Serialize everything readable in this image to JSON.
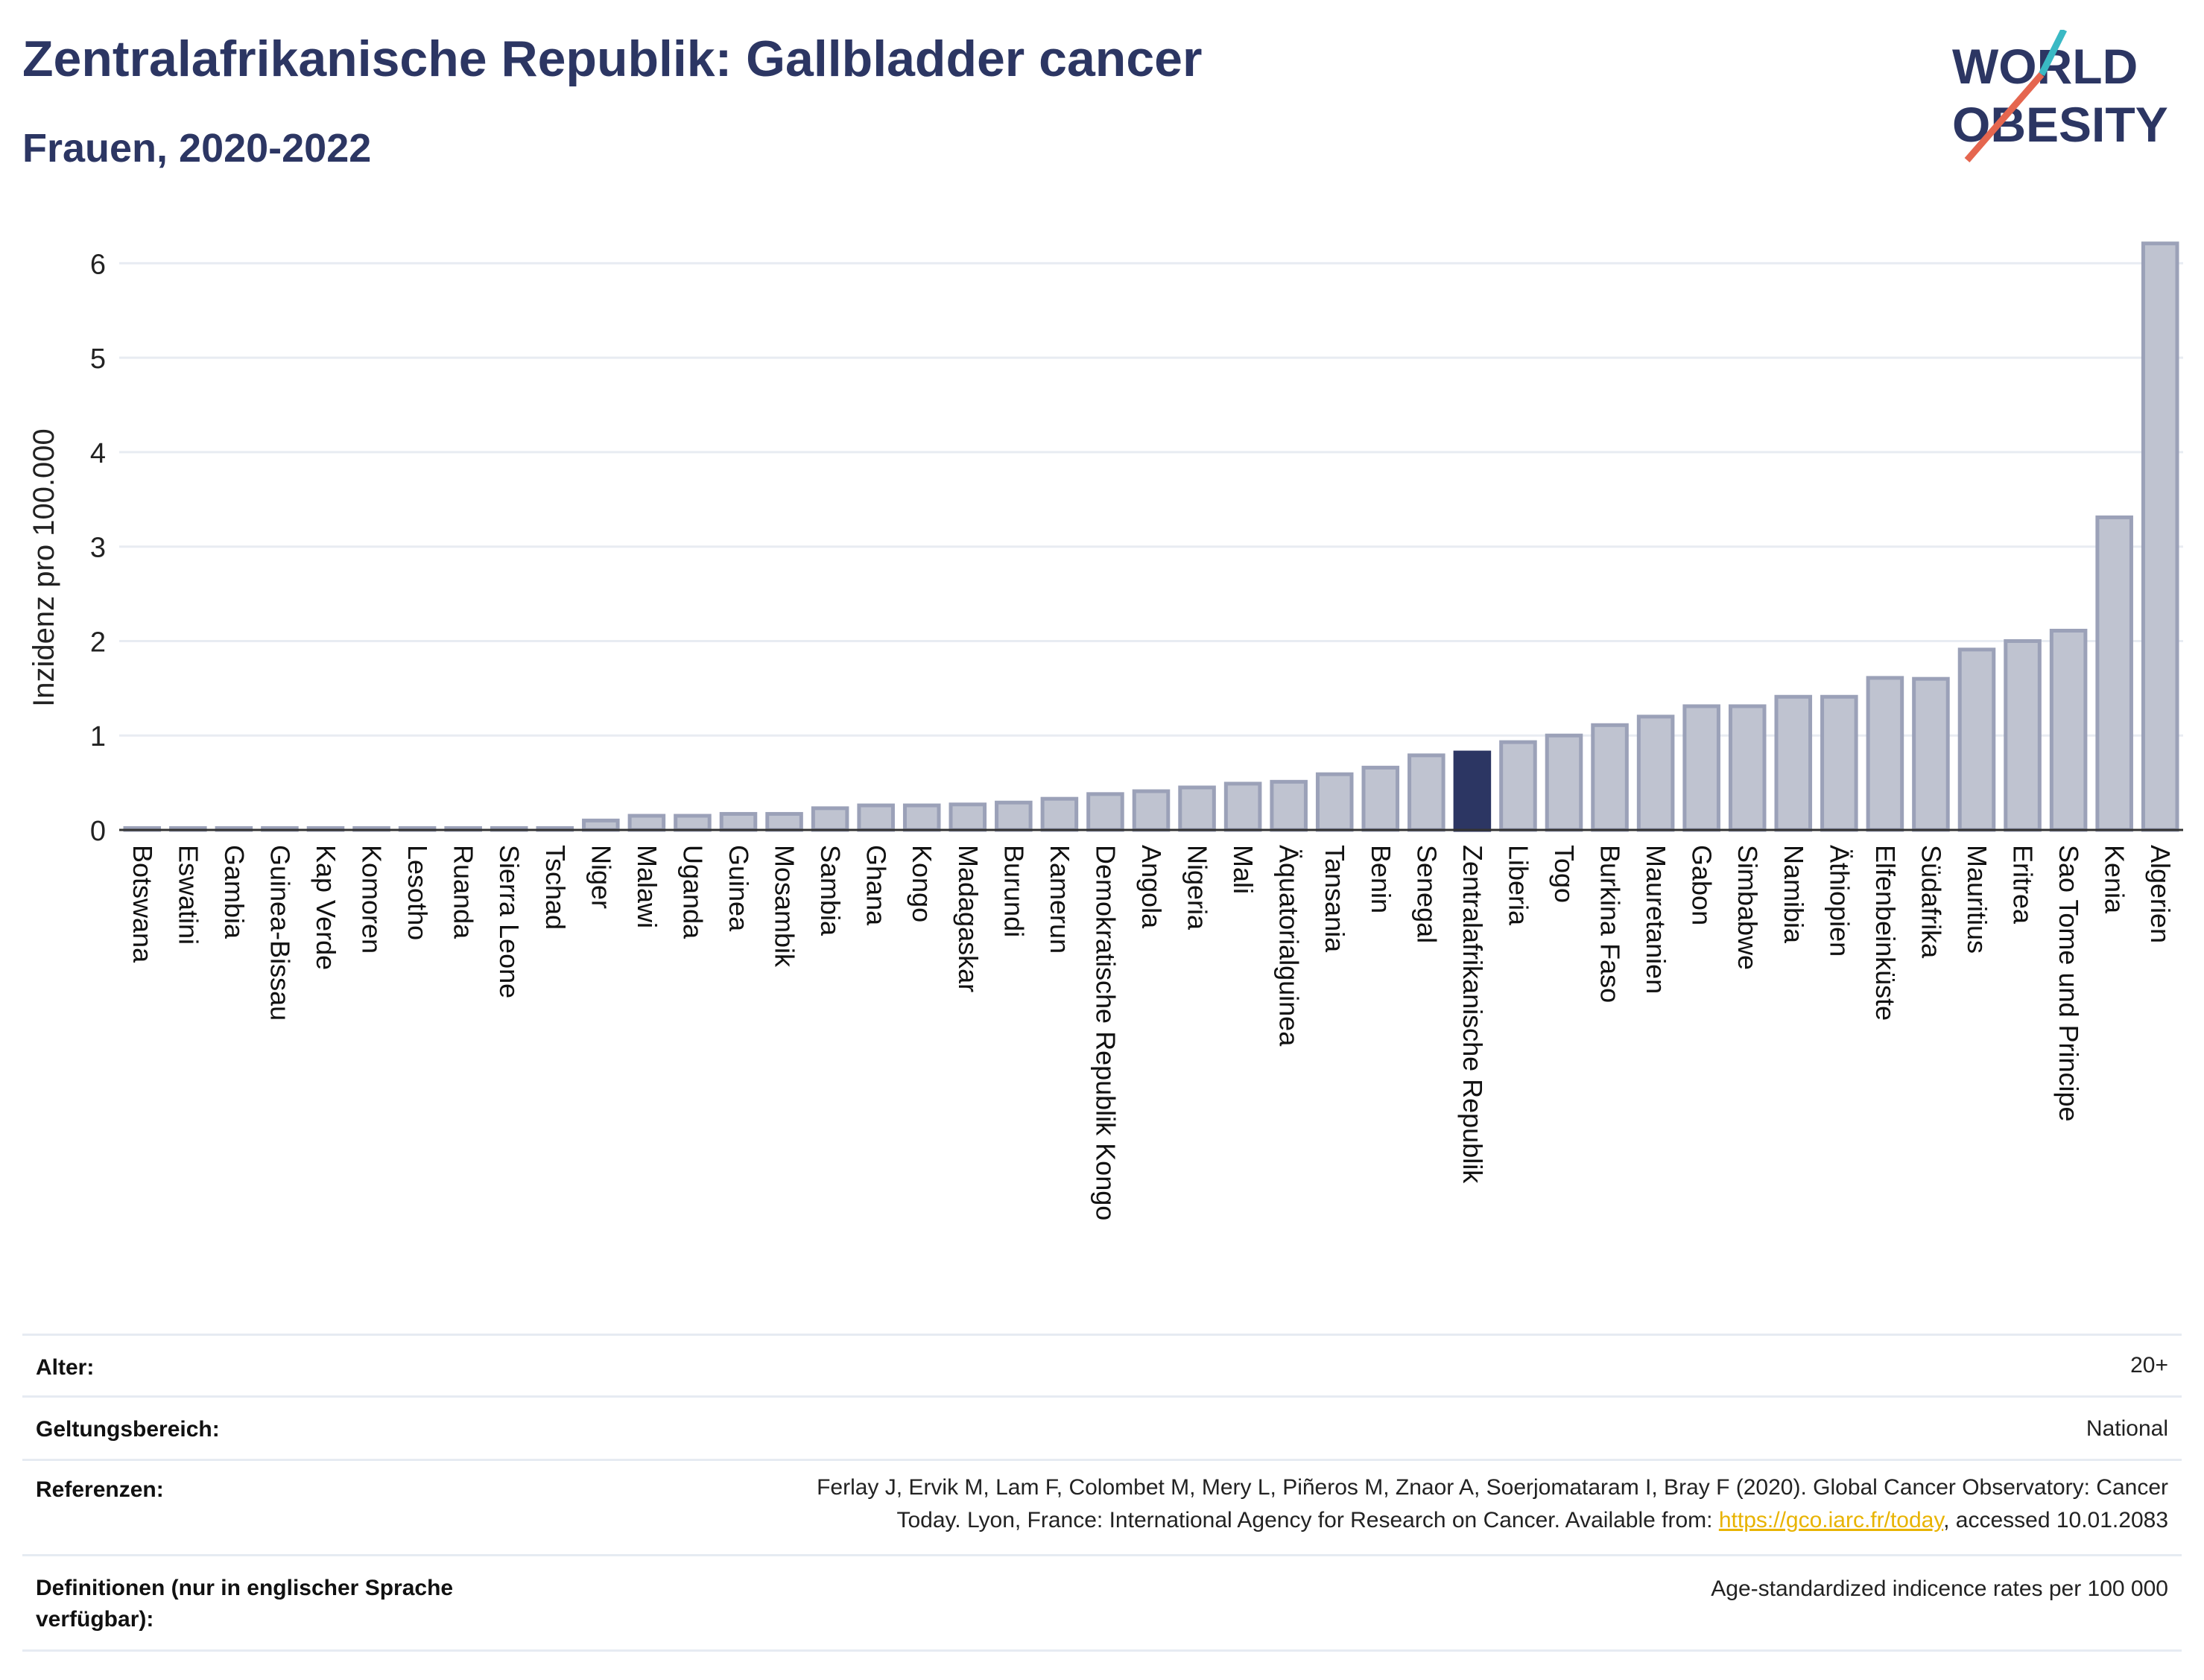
{
  "header": {
    "title": "Zentralafrikanische Republik: Gallbladder cancer",
    "subtitle": "Frauen, 2020-2022"
  },
  "logo": {
    "line1": "WORLD",
    "line2": "OBESITY"
  },
  "colors": {
    "bar": "#bfc3d0",
    "bar_stroke": "#9ba1b8",
    "highlight": "#2c3663",
    "title": "#2c3663",
    "logo_teal": "#3ab9c4",
    "logo_red": "#e5664f"
  },
  "chart_data": {
    "type": "bar",
    "ylabel": "Inzidenz pro 100.000",
    "ylim": [
      0,
      6.5
    ],
    "yticks": [
      0,
      1,
      2,
      3,
      4,
      5,
      6
    ],
    "grid": true,
    "highlight": "Zentralafrikanische Republik",
    "categories": [
      "Botswana",
      "Eswatini",
      "Gambia",
      "Guinea-Bissau",
      "Kap Verde",
      "Komoren",
      "Lesotho",
      "Ruanda",
      "Sierra Leone",
      "Tschad",
      "Niger",
      "Malawi",
      "Uganda",
      "Guinea",
      "Mosambik",
      "Sambia",
      "Ghana",
      "Kongo",
      "Madagaskar",
      "Burundi",
      "Kamerun",
      "Demokratische Republik Kongo",
      "Angola",
      "Nigeria",
      "Mali",
      "Äquatorialguinea",
      "Tansania",
      "Benin",
      "Senegal",
      "Zentralafrikanische Republik",
      "Liberia",
      "Togo",
      "Burkina Faso",
      "Mauretanien",
      "Gabon",
      "Simbabwe",
      "Namibia",
      "Äthiopien",
      "Elfenbeinküste",
      "Südafrika",
      "Mauritius",
      "Eritrea",
      "Sao Tome und Principe",
      "Kenia",
      "Algerien"
    ],
    "values": [
      0.02,
      0.02,
      0.02,
      0.02,
      0.02,
      0.02,
      0.02,
      0.02,
      0.02,
      0.02,
      0.1,
      0.15,
      0.15,
      0.17,
      0.17,
      0.23,
      0.26,
      0.26,
      0.27,
      0.29,
      0.33,
      0.38,
      0.41,
      0.45,
      0.49,
      0.51,
      0.59,
      0.66,
      0.79,
      0.82,
      0.93,
      1.0,
      1.11,
      1.2,
      1.31,
      1.31,
      1.41,
      1.41,
      1.61,
      1.6,
      1.91,
      2.0,
      2.11,
      3.31,
      6.21
    ]
  },
  "meta": {
    "rows": [
      {
        "label": "Alter:",
        "value": "20+"
      },
      {
        "label": "Geltungsbereich:",
        "value": "National"
      },
      {
        "label": "Referenzen:",
        "value_line1": "Ferlay J, Ervik M, Lam F, Colombet M, Mery L, Piñeros M, Znaor A, Soerjomataram I, Bray F (2020). Global Cancer Observatory: Cancer",
        "value_line2_pre": "Today. Lyon, France: International Agency for Research on Cancer. Available from: ",
        "link": "https://gco.iarc.fr/today",
        "value_line2_post": ", accessed 10.01.2083"
      },
      {
        "label_line1": "Definitionen (nur in englischer Sprache",
        "label_line2": "verfügbar):",
        "value": "Age-standardized indicence rates per 100 000"
      }
    ]
  }
}
